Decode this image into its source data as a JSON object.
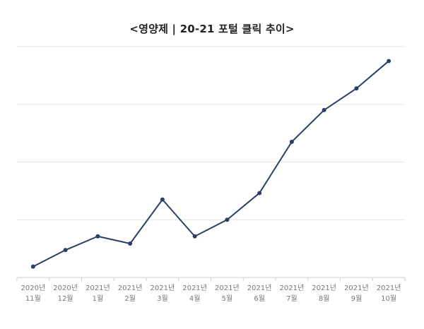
{
  "chart_data": {
    "type": "line",
    "title": "<영양제 | 20-21 포털 클릭 추이>",
    "categories": [
      {
        "line1": "2020년",
        "line2": "11월"
      },
      {
        "line1": "2020년",
        "line2": "12월"
      },
      {
        "line1": "2021년",
        "line2": "1월"
      },
      {
        "line1": "2021년",
        "line2": "2월"
      },
      {
        "line1": "2021년",
        "line2": "3월"
      },
      {
        "line1": "2021년",
        "line2": "4월"
      },
      {
        "line1": "2021년",
        "line2": "5월"
      },
      {
        "line1": "2021년",
        "line2": "6월"
      },
      {
        "line1": "2021년",
        "line2": "7월"
      },
      {
        "line1": "2021년",
        "line2": "8월"
      },
      {
        "line1": "2021년",
        "line2": "9월"
      },
      {
        "line1": "2021년",
        "line2": "10월"
      }
    ],
    "series": [
      {
        "values": [
          7.5,
          19,
          28.5,
          23.5,
          54,
          28.5,
          40,
          58.5,
          94,
          116,
          131,
          150
        ]
      }
    ],
    "ylim": [
      0,
      160
    ],
    "ytick_count": 5,
    "grid": true,
    "legend": "none",
    "line_color": "#2b3f66",
    "grid_color": "#e6e6e6"
  }
}
